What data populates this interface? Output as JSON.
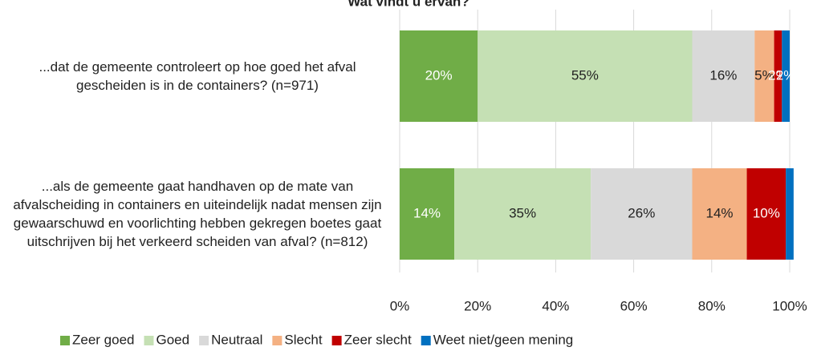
{
  "chart_data": {
    "type": "stacked-barh",
    "title": "Wat vindt u ervan?",
    "categories": [
      "...dat de gemeente controleert op hoe goed het afval gescheiden is in de containers? (n=971)",
      "...als de gemeente gaat handhaven op de mate van afvalscheiding in containers en uiteindelijk nadat mensen zijn gewaarschuwd en voorlichting hebben gekregen boetes gaat uitschrijven bij het verkeerd scheiden van afval? (n=812)"
    ],
    "series": [
      {
        "name": "Zeer goed",
        "color": "#70ad47",
        "label_color": "#ffffff",
        "values": [
          20,
          14
        ],
        "value_labels": [
          "20%",
          "14%"
        ]
      },
      {
        "name": "Goed",
        "color": "#c5e0b4",
        "label_color": "#222222",
        "values": [
          55,
          35
        ],
        "value_labels": [
          "55%",
          "35%"
        ]
      },
      {
        "name": "Neutraal",
        "color": "#d9d9d9",
        "label_color": "#222222",
        "values": [
          16,
          26
        ],
        "value_labels": [
          "16%",
          "26%"
        ]
      },
      {
        "name": "Slecht",
        "color": "#f4b183",
        "label_color": "#222222",
        "values": [
          5,
          14
        ],
        "value_labels": [
          "5%",
          "14%"
        ]
      },
      {
        "name": "Zeer slecht",
        "color": "#c00000",
        "label_color": "#ffffff",
        "values": [
          2,
          10
        ],
        "value_labels": [
          "2%",
          "10%"
        ]
      },
      {
        "name": "Weet niet/geen mening",
        "color": "#0070c0",
        "label_color": "#ffffff",
        "values": [
          2,
          2
        ],
        "value_labels": [
          "2%",
          null
        ]
      }
    ],
    "xlim": [
      0,
      100
    ],
    "xticks": [
      {
        "value": 0,
        "label": "0%"
      },
      {
        "value": 20,
        "label": "20%"
      },
      {
        "value": 40,
        "label": "40%"
      },
      {
        "value": 60,
        "label": "60%"
      },
      {
        "value": 80,
        "label": "80%"
      },
      {
        "value": 100,
        "label": "100%"
      }
    ],
    "grid": true,
    "legend": "bottom"
  }
}
